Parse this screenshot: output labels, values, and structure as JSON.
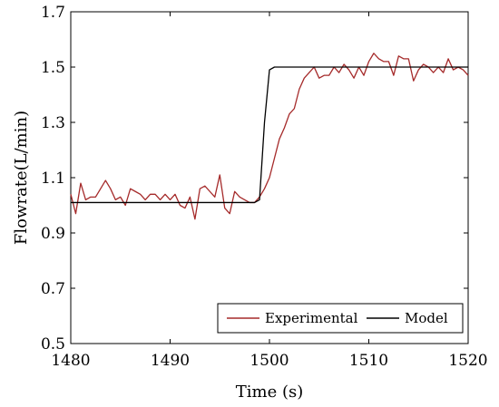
{
  "chart_data": {
    "type": "line",
    "xlabel": "Time (s)",
    "ylabel": "Flowrate(L/min)",
    "xlim": [
      1480,
      1520
    ],
    "ylim": [
      0.5,
      1.7
    ],
    "xticks": [
      "1480",
      "1490",
      "1500",
      "1510",
      "1520"
    ],
    "yticks": [
      "0.5",
      "0.7",
      "0.9",
      "1.1",
      "1.3",
      "1.5",
      "1.7"
    ],
    "grid": false,
    "legend_position": "bottom-right",
    "series": [
      {
        "name": "Experimental",
        "color": "#a52a2a",
        "x": [
          1480,
          1480.5,
          1481,
          1481.5,
          1482,
          1482.5,
          1483,
          1483.5,
          1484,
          1484.5,
          1485,
          1485.5,
          1486,
          1486.5,
          1487,
          1487.5,
          1488,
          1488.5,
          1489,
          1489.5,
          1490,
          1490.5,
          1491,
          1491.5,
          1492,
          1492.5,
          1493,
          1493.5,
          1494,
          1494.5,
          1495,
          1495.5,
          1496,
          1496.5,
          1497,
          1497.5,
          1498,
          1498.5,
          1499,
          1499.5,
          1500,
          1500.5,
          1501,
          1501.5,
          1502,
          1502.5,
          1503,
          1503.5,
          1504,
          1504.5,
          1505,
          1505.5,
          1506,
          1506.5,
          1507,
          1507.5,
          1508,
          1508.5,
          1509,
          1509.5,
          1510,
          1510.5,
          1511,
          1511.5,
          1512,
          1512.5,
          1513,
          1513.5,
          1514,
          1514.5,
          1515,
          1515.5,
          1516,
          1516.5,
          1517,
          1517.5,
          1518,
          1518.5,
          1519,
          1519.5,
          1520
        ],
        "y": [
          1.04,
          0.97,
          1.08,
          1.02,
          1.03,
          1.03,
          1.06,
          1.09,
          1.06,
          1.02,
          1.03,
          1.0,
          1.06,
          1.05,
          1.04,
          1.02,
          1.04,
          1.04,
          1.02,
          1.04,
          1.02,
          1.04,
          1.0,
          0.99,
          1.03,
          0.95,
          1.06,
          1.07,
          1.05,
          1.03,
          1.11,
          0.99,
          0.97,
          1.05,
          1.03,
          1.02,
          1.01,
          1.01,
          1.03,
          1.06,
          1.1,
          1.17,
          1.24,
          1.28,
          1.33,
          1.35,
          1.42,
          1.46,
          1.48,
          1.5,
          1.46,
          1.47,
          1.47,
          1.5,
          1.48,
          1.51,
          1.49,
          1.46,
          1.5,
          1.47,
          1.52,
          1.55,
          1.53,
          1.52,
          1.52,
          1.47,
          1.54,
          1.53,
          1.53,
          1.45,
          1.49,
          1.51,
          1.5,
          1.48,
          1.5,
          1.48,
          1.53,
          1.49,
          1.5,
          1.49,
          1.47
        ]
      },
      {
        "name": "Model",
        "color": "#000000",
        "x": [
          1480,
          1498.5,
          1499,
          1499.5,
          1500,
          1500.5,
          1520
        ],
        "y": [
          1.01,
          1.01,
          1.02,
          1.3,
          1.49,
          1.5,
          1.5
        ]
      }
    ]
  }
}
